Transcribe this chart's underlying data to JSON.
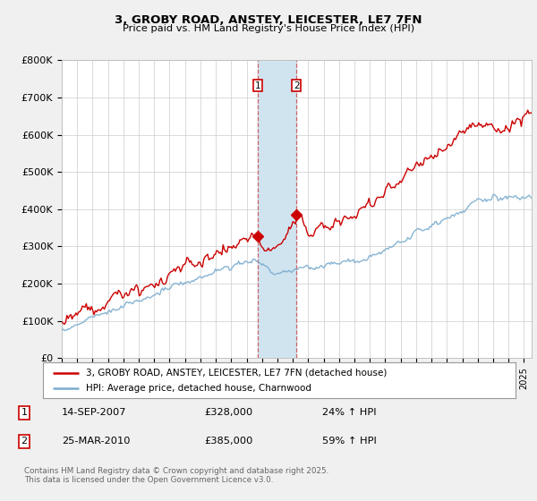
{
  "title": "3, GROBY ROAD, ANSTEY, LEICESTER, LE7 7FN",
  "subtitle": "Price paid vs. HM Land Registry's House Price Index (HPI)",
  "ylim": [
    0,
    800000
  ],
  "yticks": [
    0,
    100000,
    200000,
    300000,
    400000,
    500000,
    600000,
    700000,
    800000
  ],
  "ytick_labels": [
    "£0",
    "£100K",
    "£200K",
    "£300K",
    "£400K",
    "£500K",
    "£600K",
    "£700K",
    "£800K"
  ],
  "background_color": "#f0f0f0",
  "plot_background": "#ffffff",
  "grid_color": "#cccccc",
  "red_line_color": "#cc0000",
  "blue_line_color": "#7aacce",
  "shade_color": "#d0e4f0",
  "transaction1_price": 328000,
  "transaction1_x": 2007.71,
  "transaction2_price": 385000,
  "transaction2_x": 2010.23,
  "legend_line1": "3, GROBY ROAD, ANSTEY, LEICESTER, LE7 7FN (detached house)",
  "legend_line2": "HPI: Average price, detached house, Charnwood",
  "footer": "Contains HM Land Registry data © Crown copyright and database right 2025.\nThis data is licensed under the Open Government Licence v3.0.",
  "xmin": 1995,
  "xmax": 2025.5,
  "row1_num": "1",
  "row1_date": "14-SEP-2007",
  "row1_price": "£328,000",
  "row1_hpi": "24% ↑ HPI",
  "row2_num": "2",
  "row2_date": "25-MAR-2010",
  "row2_price": "£385,000",
  "row2_hpi": "59% ↑ HPI"
}
